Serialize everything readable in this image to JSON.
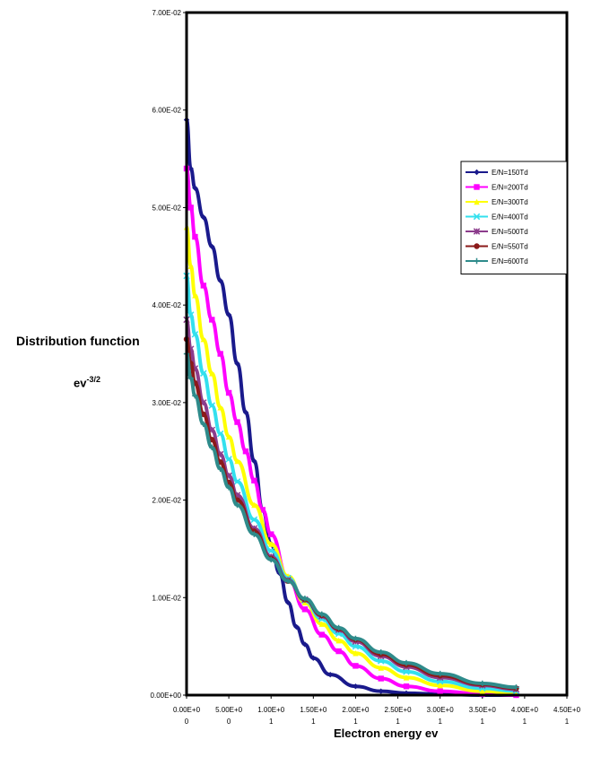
{
  "chart_data": {
    "type": "line",
    "ylabel": "Distribution function",
    "yunit_base": "ev",
    "yunit_exp": "-3/2",
    "xlabel": "Electron energy  ev",
    "xlim": [
      0,
      4.5
    ],
    "ylim": [
      0,
      0.07
    ],
    "yticks": [
      {
        "v": 0.0,
        "label": "0.00E+00"
      },
      {
        "v": 0.01,
        "label": "1.00E-02"
      },
      {
        "v": 0.02,
        "label": "2.00E-02"
      },
      {
        "v": 0.03,
        "label": "3.00E-02"
      },
      {
        "v": 0.04,
        "label": "4.00E-02"
      },
      {
        "v": 0.05,
        "label": "5.00E-02"
      },
      {
        "v": 0.06,
        "label": "6.00E-02"
      },
      {
        "v": 0.07,
        "label": "7.00E-02"
      }
    ],
    "xticks": [
      {
        "v": 0.0,
        "l1": "0.00E+0",
        "l2": "0"
      },
      {
        "v": 0.5,
        "l1": "5.00E+0",
        "l2": "0"
      },
      {
        "v": 1.0,
        "l1": "1.00E+0",
        "l2": "1"
      },
      {
        "v": 1.5,
        "l1": "1.50E+0",
        "l2": "1"
      },
      {
        "v": 2.0,
        "l1": "2.00E+0",
        "l2": "1"
      },
      {
        "v": 2.5,
        "l1": "2.50E+0",
        "l2": "1"
      },
      {
        "v": 3.0,
        "l1": "3.00E+0",
        "l2": "1"
      },
      {
        "v": 3.5,
        "l1": "3.50E+0",
        "l2": "1"
      },
      {
        "v": 4.0,
        "l1": "4.00E+0",
        "l2": "1"
      },
      {
        "v": 4.5,
        "l1": "4.50E+0",
        "l2": "1"
      }
    ],
    "legend_position": "right",
    "series": [
      {
        "name": "E/N=150Td",
        "color": "#1a1a8c",
        "marker": "diamond",
        "x": [
          0,
          0.05,
          0.1,
          0.2,
          0.3,
          0.4,
          0.5,
          0.6,
          0.7,
          0.8,
          0.9,
          1.0,
          1.1,
          1.2,
          1.3,
          1.4,
          1.5,
          1.7,
          2.0,
          2.3,
          2.6,
          3.0,
          3.5,
          3.9
        ],
        "y": [
          0.059,
          0.054,
          0.052,
          0.049,
          0.046,
          0.0425,
          0.039,
          0.034,
          0.029,
          0.024,
          0.019,
          0.0155,
          0.0125,
          0.0095,
          0.007,
          0.0052,
          0.0038,
          0.0021,
          0.0009,
          0.0004,
          0.0002,
          0.0001,
          0.0,
          0.0
        ]
      },
      {
        "name": "E/N=200Td",
        "color": "#ff00ff",
        "marker": "square",
        "x": [
          0,
          0.05,
          0.1,
          0.2,
          0.3,
          0.4,
          0.5,
          0.6,
          0.7,
          0.8,
          0.9,
          1.0,
          1.2,
          1.4,
          1.6,
          1.8,
          2.0,
          2.3,
          2.6,
          3.0,
          3.5,
          3.9
        ],
        "y": [
          0.054,
          0.05,
          0.047,
          0.042,
          0.0385,
          0.035,
          0.031,
          0.028,
          0.025,
          0.022,
          0.019,
          0.0165,
          0.012,
          0.0088,
          0.0062,
          0.0045,
          0.003,
          0.0017,
          0.0009,
          0.0004,
          0.0001,
          0.0
        ]
      },
      {
        "name": "E/N=300Td",
        "color": "#ffff00",
        "marker": "triangle",
        "x": [
          0,
          0.05,
          0.1,
          0.2,
          0.3,
          0.4,
          0.5,
          0.6,
          0.8,
          1.0,
          1.2,
          1.4,
          1.6,
          1.8,
          2.0,
          2.3,
          2.6,
          3.0,
          3.5,
          3.9
        ],
        "y": [
          0.048,
          0.044,
          0.041,
          0.0365,
          0.033,
          0.0295,
          0.0265,
          0.024,
          0.0195,
          0.0155,
          0.0122,
          0.0095,
          0.0073,
          0.0056,
          0.0043,
          0.0028,
          0.0018,
          0.001,
          0.0004,
          0.0002
        ]
      },
      {
        "name": "E/N=400Td",
        "color": "#33e0ee",
        "marker": "x",
        "x": [
          0,
          0.05,
          0.1,
          0.2,
          0.3,
          0.4,
          0.5,
          0.6,
          0.8,
          1.0,
          1.2,
          1.4,
          1.6,
          1.8,
          2.0,
          2.3,
          2.6,
          3.0,
          3.5,
          3.9
        ],
        "y": [
          0.043,
          0.039,
          0.037,
          0.033,
          0.0297,
          0.0268,
          0.0242,
          0.0219,
          0.018,
          0.0148,
          0.012,
          0.0097,
          0.0078,
          0.0063,
          0.005,
          0.0035,
          0.0024,
          0.0014,
          0.0007,
          0.0004
        ]
      },
      {
        "name": "E/N=500Td",
        "color": "#8c3c8c",
        "marker": "star",
        "x": [
          0,
          0.05,
          0.1,
          0.2,
          0.3,
          0.4,
          0.5,
          0.6,
          0.8,
          1.0,
          1.2,
          1.4,
          1.6,
          1.8,
          2.0,
          2.3,
          2.6,
          3.0,
          3.5,
          3.9
        ],
        "y": [
          0.0385,
          0.0355,
          0.0335,
          0.03,
          0.0272,
          0.0247,
          0.0225,
          0.0205,
          0.0171,
          0.0142,
          0.0118,
          0.0098,
          0.0081,
          0.0067,
          0.0055,
          0.004,
          0.0029,
          0.0018,
          0.001,
          0.0006
        ]
      },
      {
        "name": "E/N=550Td",
        "color": "#8b1a1a",
        "marker": "circle",
        "x": [
          0,
          0.05,
          0.1,
          0.2,
          0.3,
          0.4,
          0.5,
          0.6,
          0.8,
          1.0,
          1.2,
          1.4,
          1.6,
          1.8,
          2.0,
          2.3,
          2.6,
          3.0,
          3.5,
          3.9
        ],
        "y": [
          0.0365,
          0.034,
          0.032,
          0.0288,
          0.0262,
          0.0239,
          0.0218,
          0.02,
          0.0168,
          0.014,
          0.0117,
          0.0098,
          0.0082,
          0.0068,
          0.0057,
          0.0042,
          0.0031,
          0.002,
          0.0011,
          0.0007
        ]
      },
      {
        "name": "E/N=600Td",
        "color": "#2e8b8b",
        "marker": "plus",
        "x": [
          0,
          0.05,
          0.1,
          0.2,
          0.3,
          0.4,
          0.5,
          0.6,
          0.8,
          1.0,
          1.2,
          1.4,
          1.6,
          1.8,
          2.0,
          2.3,
          2.6,
          3.0,
          3.5,
          3.9
        ],
        "y": [
          0.035,
          0.0325,
          0.0307,
          0.0278,
          0.0254,
          0.0232,
          0.0213,
          0.0195,
          0.0165,
          0.0139,
          0.0117,
          0.0099,
          0.0083,
          0.0069,
          0.0058,
          0.0044,
          0.0033,
          0.0022,
          0.0012,
          0.0008
        ]
      }
    ]
  }
}
